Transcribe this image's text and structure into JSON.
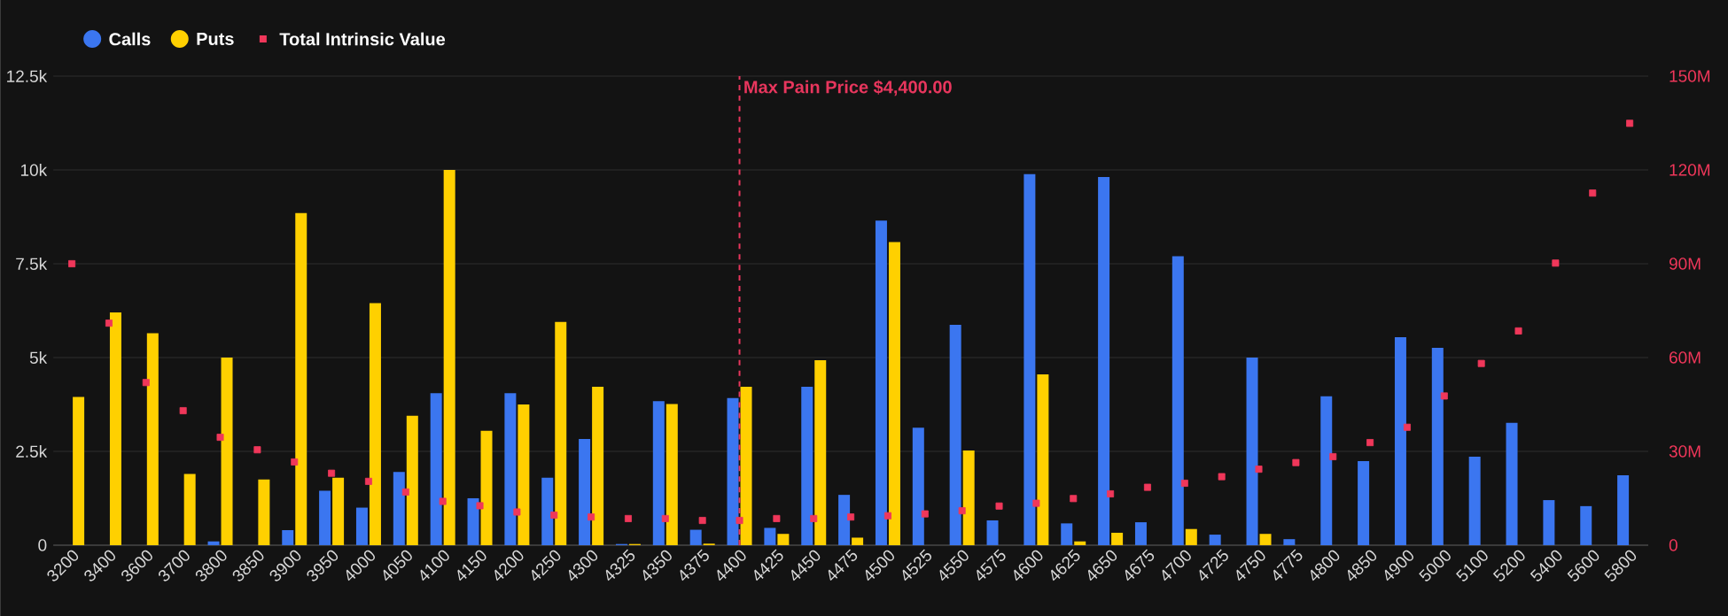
{
  "chart_data": {
    "type": "bar",
    "categories": [
      "3200",
      "3400",
      "3600",
      "3700",
      "3800",
      "3850",
      "3900",
      "3950",
      "4000",
      "4050",
      "4100",
      "4150",
      "4200",
      "4250",
      "4300",
      "4325",
      "4350",
      "4375",
      "4400",
      "4425",
      "4450",
      "4475",
      "4500",
      "4525",
      "4550",
      "4575",
      "4600",
      "4625",
      "4650",
      "4675",
      "4700",
      "4725",
      "4750",
      "4775",
      "4800",
      "4850",
      "4900",
      "5000",
      "5100",
      "5200",
      "5400",
      "5600",
      "5800"
    ],
    "series": [
      {
        "name": "Calls",
        "color": "#3b76f0",
        "values": [
          0,
          0,
          0,
          0,
          100,
          0,
          400,
          1450,
          1000,
          1950,
          4050,
          1250,
          4050,
          1800,
          2830,
          30,
          3840,
          410,
          3920,
          460,
          4220,
          1340,
          8650,
          3130,
          5870,
          660,
          9890,
          580,
          9810,
          610,
          7700,
          280,
          5000,
          160,
          3970,
          2240,
          5540,
          5260,
          2360,
          3260,
          1200,
          1040,
          1860
        ]
      },
      {
        "name": "Puts",
        "color": "#ffd000",
        "values": [
          3950,
          6200,
          5650,
          1900,
          5000,
          1750,
          8850,
          1800,
          6450,
          3450,
          10000,
          3050,
          3750,
          5950,
          4220,
          30,
          3760,
          40,
          4220,
          300,
          4930,
          200,
          8080,
          0,
          2520,
          0,
          4550,
          100,
          330,
          0,
          430,
          0,
          300,
          0,
          0,
          0,
          0,
          0,
          0,
          0,
          0,
          0,
          0
        ]
      },
      {
        "name": "Total Intrinsic Value",
        "type": "scatter",
        "axis": "y2",
        "marker": "square",
        "color": "#f0375a",
        "values": [
          90000000,
          71000000,
          52000000,
          43000000,
          34500000,
          30500000,
          26600000,
          23000000,
          20400000,
          17000000,
          14000000,
          12600000,
          10600000,
          9600000,
          9000000,
          8500000,
          8500000,
          7900000,
          7900000,
          8500000,
          8500000,
          9000000,
          9400000,
          10000000,
          11000000,
          12500000,
          13400000,
          14900000,
          16400000,
          18500000,
          19800000,
          21900000,
          24300000,
          26400000,
          28300000,
          32800000,
          37700000,
          47700000,
          58100000,
          68500000,
          90200000,
          112600000,
          134900000
        ]
      }
    ],
    "ylim": [
      0,
      12500
    ],
    "yticks": [
      0,
      {
        "value": 2500,
        "label": "2.5k"
      },
      {
        "value": 5000,
        "label": "5k"
      },
      {
        "value": 7500,
        "label": "7.5k"
      },
      {
        "value": 10000,
        "label": "10k"
      },
      {
        "value": 12500,
        "label": "12.5k"
      }
    ],
    "y2lim": [
      0,
      150000000
    ],
    "y2ticks": [
      0,
      {
        "value": 30000000,
        "label": "30M"
      },
      {
        "value": 60000000,
        "label": "60M"
      },
      {
        "value": 90000000,
        "label": "90M"
      },
      {
        "value": 120000000,
        "label": "120M"
      },
      {
        "value": 150000000,
        "label": "150M"
      }
    ],
    "ref_lines": [
      {
        "axis": "x",
        "value": "4400",
        "label": "Max Pain Price $4,400.00",
        "color": "#e8365d",
        "line_style": "dashed"
      }
    ],
    "grid": "y",
    "legend": "top left"
  }
}
